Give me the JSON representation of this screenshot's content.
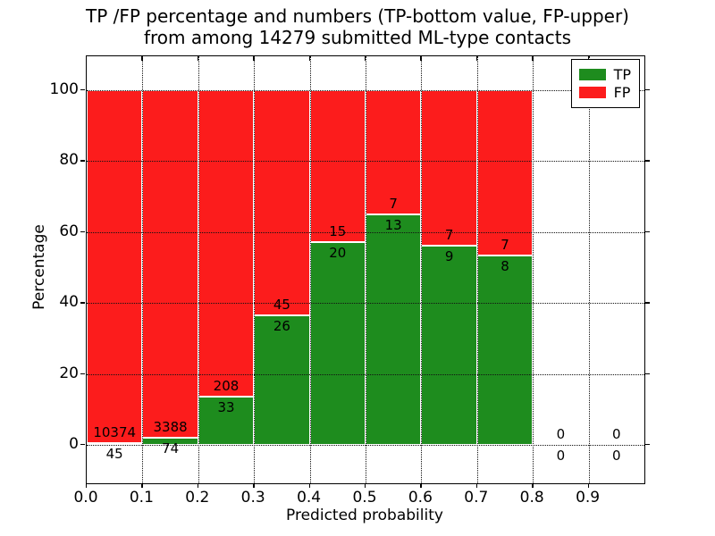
{
  "title": {
    "line1": "TP /FP percentage and numbers (TP-bottom value, FP-upper)",
    "line2": "from among 14279 submitted ML-type contacts"
  },
  "axes": {
    "xlabel": "Predicted probability",
    "ylabel": "Percentage",
    "x_tick_labels": [
      "0.0",
      "0.1",
      "0.2",
      "0.3",
      "0.4",
      "0.5",
      "0.6",
      "0.7",
      "0.8",
      "0.9"
    ],
    "y_tick_labels": [
      "0",
      "20",
      "40",
      "60",
      "80",
      "100"
    ]
  },
  "legend": {
    "entries": [
      {
        "label": "TP",
        "color": "#1e8c1e"
      },
      {
        "label": "FP",
        "color": "#fc1c1c"
      }
    ]
  },
  "colors": {
    "tp_green": "#1e8c1e",
    "fp_red": "#fc1c1c",
    "text": "#000000",
    "background": "#ffffff"
  },
  "chart_data": {
    "type": "bar",
    "stacked": true,
    "title": "TP /FP percentage and numbers (TP-bottom value, FP-upper) from among 14279 submitted ML-type contacts",
    "xlabel": "Predicted probability",
    "ylabel": "Percentage",
    "xlim": [
      0.0,
      1.0
    ],
    "ylim": [
      -11,
      110
    ],
    "x_ticks": [
      0.0,
      0.1,
      0.2,
      0.3,
      0.4,
      0.5,
      0.6,
      0.7,
      0.8,
      0.9
    ],
    "y_ticks": [
      0,
      20,
      40,
      60,
      80,
      100
    ],
    "grid": "dotted, drawn above bars",
    "legend_position": "upper right",
    "total_contacts": 14279,
    "bin_width": 0.1,
    "categories": [
      "0.0-0.1",
      "0.1-0.2",
      "0.2-0.3",
      "0.3-0.4",
      "0.4-0.5",
      "0.5-0.6",
      "0.6-0.7",
      "0.7-0.8",
      "0.8-0.9",
      "0.9-1.0"
    ],
    "series": [
      {
        "name": "TP",
        "color": "#1e8c1e",
        "counts": [
          45,
          74,
          33,
          26,
          20,
          13,
          9,
          8,
          0,
          0
        ]
      },
      {
        "name": "FP",
        "color": "#fc1c1c",
        "counts": [
          10374,
          3388,
          208,
          45,
          15,
          7,
          7,
          7,
          0,
          0
        ]
      }
    ],
    "tp_percent_per_bin": [
      0.43,
      2.14,
      13.69,
      36.62,
      57.14,
      65.0,
      56.25,
      53.33,
      0,
      0
    ],
    "note": "Each bin stacked to 100%: green TP% bottom, red FP% top; labels show raw counts (FP above TP)"
  }
}
